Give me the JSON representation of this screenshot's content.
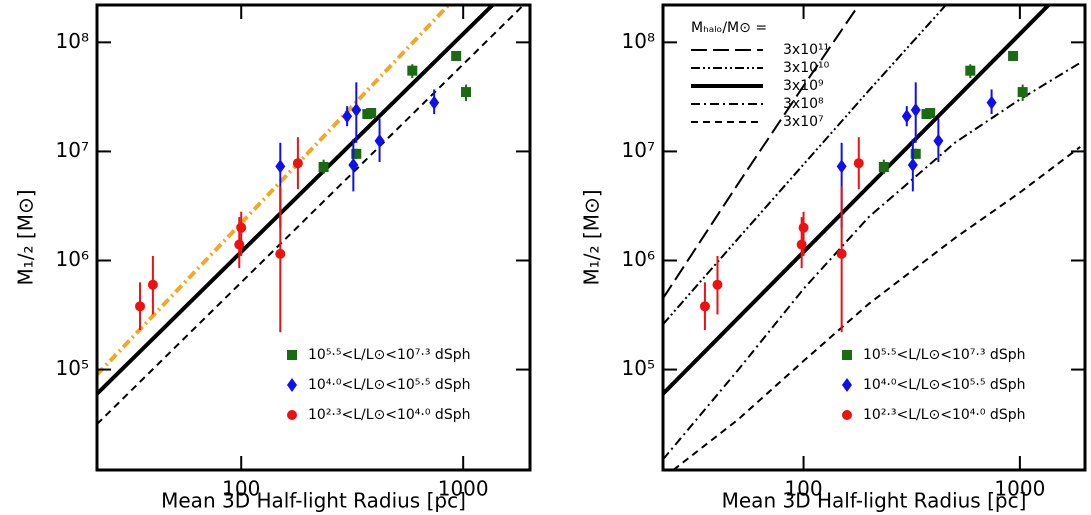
{
  "chart_data": [
    {
      "type": "scatter",
      "xlabel": "Mean 3D Half-light Radius [pc]",
      "ylabel": "M₁/₂ [M⊙]",
      "xscale": "log",
      "yscale": "log",
      "xlim": [
        22.4,
        2000
      ],
      "ylim": [
        12000,
        220000000
      ],
      "xticks": [
        100,
        1000
      ],
      "yticks": [
        {
          "value": 100000,
          "label": "10⁵"
        },
        {
          "value": 1000000,
          "label": "10⁶"
        },
        {
          "value": 10000000,
          "label": "10⁷"
        },
        {
          "value": 100000000,
          "label": "10⁸"
        }
      ],
      "series": [
        {
          "name": "10⁵·⁵<L/L⊙<10⁷·³ dSph",
          "color": "#1a6b12",
          "marker": "square",
          "x": [
            235,
            330,
            370,
            385,
            590,
            930,
            1030
          ],
          "values": [
            7200000,
            9500000,
            22000000,
            22500000,
            55000000,
            75000000,
            35000000
          ],
          "lower": [
            6200000,
            8500000,
            20000000,
            20500000,
            47000000,
            70000000,
            29000000
          ],
          "upper": [
            8400000,
            10600000,
            24000000,
            24500000,
            63000000,
            80000000,
            41000000
          ]
        },
        {
          "name": "10⁴·⁰<L/L⊙<10⁵·⁵ dSph",
          "color": "#1010ee",
          "marker": "diamond",
          "x": [
            150,
            300,
            320,
            330,
            420,
            740
          ],
          "values": [
            7300000,
            21000000,
            7500000,
            24000000,
            12500000,
            28000000
          ],
          "lower": [
            2000000,
            17000000,
            4300000,
            12000000,
            8000000,
            22000000
          ],
          "upper": [
            12000000,
            26000000,
            13000000,
            43000000,
            20000000,
            37000000
          ]
        },
        {
          "name": "10²·³<L/L⊙<10⁴·⁰ dSph",
          "color": "#ee1111",
          "marker": "circle",
          "x": [
            35,
            40,
            98,
            100,
            150,
            180
          ],
          "values": [
            380000,
            600000,
            1400000,
            2000000,
            1150000,
            7800000
          ],
          "lower": [
            230000,
            320000,
            850000,
            1100000,
            220000,
            4500000
          ],
          "upper": [
            630000,
            1100000,
            2500000,
            2800000,
            4800000,
            13500000
          ]
        }
      ],
      "lines": [
        {
          "color": "#000000",
          "dash": "solid",
          "x": [
            22.4,
            100,
            1370
          ],
          "values": [
            60000,
            1200000,
            224000000
          ]
        },
        {
          "color": "#f5a623",
          "dash": "dashdot",
          "x": [
            22.4,
            100,
            860
          ],
          "values": [
            90000,
            2200000,
            220000000
          ]
        },
        {
          "color": "#000000",
          "dash": "dashed",
          "x": [
            22.4,
            1870
          ],
          "values": [
            31600,
            220000000
          ]
        }
      ]
    },
    {
      "type": "scatter",
      "xlabel": "Mean 3D Half-light Radius [pc]",
      "ylabel": "M₁/₂ [M⊙]",
      "xscale": "log",
      "yscale": "log",
      "xlim": [
        22.4,
        2000
      ],
      "ylim": [
        12000,
        220000000
      ],
      "xticks": [
        100,
        1000
      ],
      "yticks": [
        {
          "value": 100000,
          "label": "10⁵"
        },
        {
          "value": 1000000,
          "label": "10⁶"
        },
        {
          "value": 10000000,
          "label": "10⁷"
        },
        {
          "value": 100000000,
          "label": "10⁸"
        }
      ],
      "legend_title": "Mₕₐₗₒ/M⊙ =",
      "series": [
        {
          "name": "10⁵·⁵<L/L⊙<10⁷·³ dSph",
          "color": "#1a6b12",
          "marker": "square",
          "x": [
            235,
            330,
            370,
            385,
            590,
            930,
            1030
          ],
          "values": [
            7200000,
            9500000,
            22000000,
            22500000,
            55000000,
            75000000,
            35000000
          ],
          "lower": [
            6200000,
            8500000,
            20000000,
            20500000,
            47000000,
            70000000,
            29000000
          ],
          "upper": [
            8400000,
            10600000,
            24000000,
            24500000,
            63000000,
            80000000,
            41000000
          ]
        },
        {
          "name": "10⁴·⁰<L/L⊙<10⁵·⁵ dSph",
          "color": "#1010ee",
          "marker": "diamond",
          "x": [
            150,
            300,
            320,
            330,
            420,
            740
          ],
          "values": [
            7300000,
            21000000,
            7500000,
            24000000,
            12500000,
            28000000
          ],
          "lower": [
            2000000,
            17000000,
            4300000,
            12000000,
            8000000,
            22000000
          ],
          "upper": [
            12000000,
            26000000,
            13000000,
            43000000,
            20000000,
            37000000
          ]
        },
        {
          "name": "10²·³<L/L⊙<10⁴·⁰ dSph",
          "color": "#ee1111",
          "marker": "circle",
          "x": [
            35,
            40,
            98,
            100,
            150,
            180
          ],
          "values": [
            380000,
            600000,
            1400000,
            2000000,
            1150000,
            7800000
          ],
          "lower": [
            230000,
            320000,
            850000,
            1100000,
            220000,
            4500000
          ],
          "upper": [
            630000,
            1100000,
            2500000,
            2800000,
            4800000,
            13500000
          ]
        }
      ],
      "lines": [
        {
          "name": "3x10¹¹",
          "color": "#000000",
          "dash": "longdash",
          "x": [
            22.4,
            50,
            100,
            180
          ],
          "values": [
            450000,
            5100000,
            40000000,
            220000000
          ]
        },
        {
          "name": "3x10¹⁰",
          "color": "#000000",
          "dash": "dashdotdot",
          "x": [
            22.4,
            50,
            100,
            200,
            455
          ],
          "values": [
            260000,
            1600000,
            7600000,
            36000000,
            220000000
          ]
        },
        {
          "name": "3x10⁹",
          "color": "#000000",
          "dash": "solid",
          "x": [
            22.4,
            100,
            1370
          ],
          "values": [
            60000,
            1200000,
            224000000
          ]
        },
        {
          "name": "3x10⁸",
          "color": "#000000",
          "dash": "dashdot",
          "x": [
            22.4,
            50,
            100,
            200,
            500,
            1000,
            1900
          ],
          "values": [
            15000,
            100000,
            550000,
            2500000,
            12000000,
            30000000,
            65000000
          ]
        },
        {
          "name": "3x10⁷",
          "color": "#000000",
          "dash": "dashed",
          "x": [
            25,
            50,
            100,
            200,
            500,
            1000,
            1900
          ],
          "values": [
            12000,
            35000,
            120000,
            400000,
            1600000,
            4200000,
            11000000
          ]
        }
      ]
    }
  ]
}
